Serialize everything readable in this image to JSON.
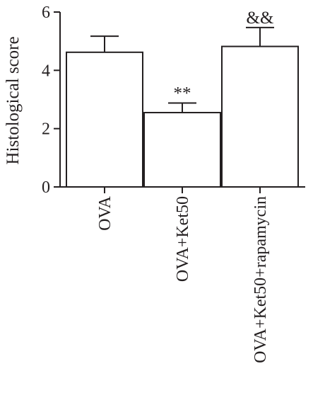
{
  "chart_data": {
    "type": "bar",
    "title": "",
    "xlabel": "",
    "ylabel": "Histological score",
    "ylim": [
      0,
      6
    ],
    "yticks": [
      0,
      2,
      4,
      6
    ],
    "categories": [
      "OVA",
      "OVA+Ket50",
      "OVA+Ket50+rapamycin"
    ],
    "values": [
      4.62,
      2.55,
      4.82
    ],
    "errors": [
      0.55,
      0.33,
      0.65
    ],
    "annotations": [
      "",
      "**",
      "&&"
    ],
    "grid": false,
    "legend": "none",
    "colors": {
      "bar_fill": "#ffffff",
      "stroke": "#231f20"
    }
  }
}
